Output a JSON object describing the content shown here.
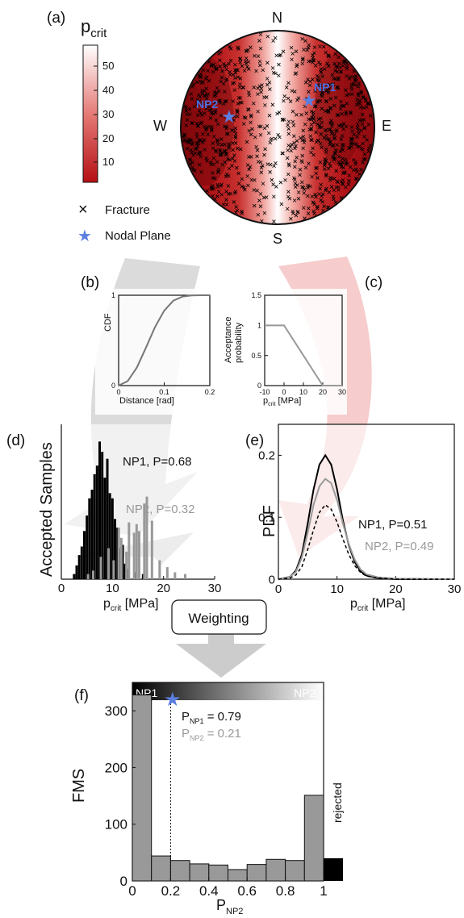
{
  "colors": {
    "colormap_low": "#b50f14",
    "colormap_high": "#ffffff",
    "star": "#5b7fe0",
    "np1_line": "#000000",
    "np2_line": "#999999",
    "reject_bar": "#000000",
    "hist_bar": "#999999",
    "arrow_grey": "#cccccc",
    "arrow_red": "#f2b3b3",
    "nodal_label": "#4a6fe0"
  },
  "panel_a": {
    "label": "(a)",
    "colorbar_title_main": "p",
    "colorbar_title_sub": "crit",
    "colorbar_ticks": [
      "10",
      "20",
      "30",
      "40",
      "50"
    ],
    "compass": {
      "n": "N",
      "s": "S",
      "e": "E",
      "w": "W"
    },
    "np1_label": "NP1",
    "np2_label": "NP2",
    "legend_fracture_symbol": "×",
    "legend_fracture": "Fracture",
    "legend_nodal_symbol": "★",
    "legend_nodal": "Nodal Plane"
  },
  "chart_data": [
    {
      "panel": "b",
      "type": "line",
      "label": "(b)",
      "xlabel": "Distance [rad]",
      "ylabel": "CDF",
      "xlim": [
        0,
        0.2
      ],
      "ylim": [
        0,
        1
      ],
      "xticks": [
        "0",
        "0.1",
        "0.2"
      ],
      "yticks": [
        "0",
        "1"
      ],
      "x": [
        0,
        0.02,
        0.04,
        0.06,
        0.08,
        0.1,
        0.12,
        0.14,
        0.16,
        0.18,
        0.2
      ],
      "y": [
        0,
        0.05,
        0.2,
        0.42,
        0.65,
        0.83,
        0.94,
        0.985,
        0.998,
        1.0,
        1.0
      ]
    },
    {
      "panel": "c",
      "type": "line",
      "label": "(c)",
      "xlabel_main": "p",
      "xlabel_sub": "crit",
      "xlabel_unit": " [MPa]",
      "ylabel_line1": "Acceptance",
      "ylabel_line2": "probability",
      "xlim": [
        -10,
        30
      ],
      "ylim": [
        0,
        1.5
      ],
      "xticks": [
        "-10",
        "0",
        "10",
        "20",
        "30"
      ],
      "yticks": [
        "0",
        "0.5",
        "1",
        "1.5"
      ],
      "x": [
        -10,
        0,
        20,
        30
      ],
      "y": [
        1,
        1,
        0,
        0
      ]
    },
    {
      "panel": "d",
      "type": "bar",
      "label": "(d)",
      "ylabel": "Accepted Samples",
      "xlabel_main": "p",
      "xlabel_sub": "crit",
      "xlabel_unit": " [MPa]",
      "xlim": [
        0,
        30
      ],
      "xticks": [
        "0",
        "10",
        "20",
        "30"
      ],
      "series": [
        {
          "name": "NP1, P=0.68",
          "x": [
            2.5,
            3,
            3.5,
            4,
            4.5,
            5,
            5.5,
            6,
            6.5,
            7,
            7.5,
            8,
            8.5,
            9,
            9.5,
            10,
            10.5,
            11,
            11.5,
            12,
            12.5,
            13,
            14.5,
            16
          ],
          "values": [
            3,
            8,
            14,
            19,
            28,
            37,
            47,
            52,
            61,
            66,
            80,
            74,
            59,
            70,
            50,
            47,
            35,
            30,
            18,
            20,
            9,
            6,
            4,
            3
          ]
        },
        {
          "name": "NP2, P=0.32",
          "x": [
            5,
            6,
            7.5,
            9,
            10,
            11,
            11.5,
            12.5,
            13,
            14,
            14.5,
            15,
            16,
            16.5,
            17.5,
            19,
            20.5,
            22,
            24
          ],
          "values": [
            3,
            5,
            13,
            18,
            11,
            30,
            24,
            16,
            33,
            27,
            32,
            28,
            44,
            48,
            34,
            11,
            7,
            4,
            3
          ]
        }
      ]
    },
    {
      "panel": "e",
      "type": "line",
      "label": "(e)",
      "ylabel": "PDF",
      "xlabel_main": "p",
      "xlabel_sub": "crit",
      "xlabel_unit": " [MPa]",
      "xlim": [
        0,
        30
      ],
      "ylim": [
        0,
        0.25
      ],
      "xticks": [
        "0",
        "10",
        "20",
        "30"
      ],
      "yticks": [
        "0",
        "0.1",
        "0.2"
      ],
      "series": [
        {
          "name": "NP1, P=0.51",
          "style": "solid-black",
          "x": [
            0,
            2,
            3,
            4,
            5,
            6,
            7,
            8,
            9,
            10,
            11,
            12,
            13,
            14,
            15,
            17,
            20,
            30
          ],
          "y": [
            0,
            0.004,
            0.014,
            0.04,
            0.09,
            0.145,
            0.185,
            0.2,
            0.185,
            0.145,
            0.095,
            0.055,
            0.028,
            0.013,
            0.006,
            0.002,
            0,
            0
          ]
        },
        {
          "name": "NP2, P=0.49",
          "style": "solid-grey",
          "x": [
            0,
            2,
            3,
            4,
            5,
            6,
            7,
            8,
            9,
            10,
            11,
            12,
            13,
            14,
            15,
            17,
            20,
            30
          ],
          "y": [
            0,
            0.004,
            0.012,
            0.035,
            0.075,
            0.12,
            0.15,
            0.162,
            0.155,
            0.128,
            0.09,
            0.057,
            0.032,
            0.016,
            0.008,
            0.003,
            0.001,
            0
          ]
        },
        {
          "name": "",
          "style": "dashed-black",
          "x": [
            0,
            2,
            3,
            4,
            5,
            6,
            7,
            8,
            9,
            10,
            11,
            12,
            13,
            14,
            15,
            17,
            20,
            30
          ],
          "y": [
            0,
            0.002,
            0.007,
            0.02,
            0.048,
            0.08,
            0.108,
            0.12,
            0.113,
            0.092,
            0.065,
            0.04,
            0.022,
            0.011,
            0.005,
            0.002,
            0,
            0
          ]
        }
      ]
    },
    {
      "panel": "f",
      "type": "bar",
      "label": "(f)",
      "ylabel": "FMS",
      "xlabel_main": "P",
      "xlabel_sub": "NP2",
      "xlim": [
        0,
        1.1
      ],
      "ylim": [
        0,
        350
      ],
      "xticks": [
        "0",
        "0.2",
        "0.4",
        "0.6",
        "0.8",
        "1"
      ],
      "yticks": [
        "0",
        "100",
        "200",
        "300"
      ],
      "bin_edges": [
        0,
        0.1,
        0.2,
        0.3,
        0.4,
        0.5,
        0.6,
        0.7,
        0.8,
        0.9,
        1.0
      ],
      "values": [
        328,
        44,
        36,
        30,
        28,
        20,
        29,
        38,
        36,
        151
      ],
      "rejected": {
        "label": "rejected",
        "value": 40
      },
      "colorbar_left": "NP1",
      "colorbar_right": "NP2",
      "estimate_x": 0.2,
      "p_np1_main": "P",
      "p_np1_sub": "NP1",
      "p_np1_value": " = 0.79",
      "p_np2_main": "P",
      "p_np2_sub": "NP2",
      "p_np2_value": " = 0.21"
    }
  ],
  "weighting_label": "Weighting"
}
